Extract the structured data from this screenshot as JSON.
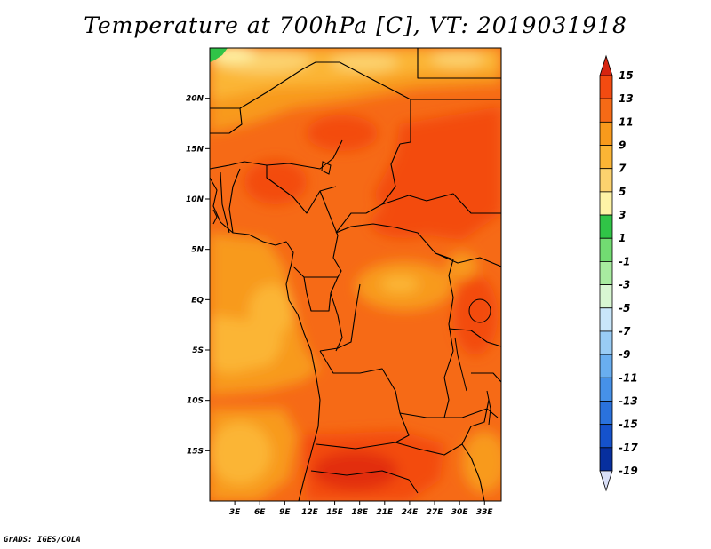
{
  "chart_data": {
    "type": "heatmap",
    "title": "Temperature at 700hPa [C], VT: 2019031918",
    "variable": "Temperature at 700hPa",
    "units": "C",
    "valid_time": "2019031918",
    "x_axis": {
      "range": [
        0,
        35
      ],
      "ticks": [
        {
          "value": 3,
          "label": "3E"
        },
        {
          "value": 6,
          "label": "6E"
        },
        {
          "value": 9,
          "label": "9E"
        },
        {
          "value": 12,
          "label": "12E"
        },
        {
          "value": 15,
          "label": "15E"
        },
        {
          "value": 18,
          "label": "18E"
        },
        {
          "value": 21,
          "label": "21E"
        },
        {
          "value": 24,
          "label": "24E"
        },
        {
          "value": 27,
          "label": "27E"
        },
        {
          "value": 30,
          "label": "30E"
        },
        {
          "value": 33,
          "label": "33E"
        }
      ]
    },
    "y_axis": {
      "range": [
        -20,
        25
      ],
      "ticks": [
        {
          "value": 20,
          "label": "20N"
        },
        {
          "value": 15,
          "label": "15N"
        },
        {
          "value": 10,
          "label": "10N"
        },
        {
          "value": 5,
          "label": "5N"
        },
        {
          "value": 0,
          "label": "EQ"
        },
        {
          "value": -5,
          "label": "5S"
        },
        {
          "value": -10,
          "label": "10S"
        },
        {
          "value": -15,
          "label": "15S"
        }
      ]
    },
    "colorbar": {
      "levels": [
        15,
        13,
        11,
        9,
        7,
        5,
        3,
        1,
        -1,
        -3,
        -5,
        -7,
        -9,
        -11,
        -13,
        -15,
        -17,
        -19
      ],
      "labels": [
        "15",
        "13",
        "11",
        "9",
        "7",
        "5",
        "3",
        "1",
        "-1",
        "-3",
        "-5",
        "-7",
        "-9",
        "-11",
        "-13",
        "-15",
        "-17",
        "-19"
      ],
      "colors": [
        "#e22d10",
        "#f34b11",
        "#f66a16",
        "#f89a1c",
        "#fbb535",
        "#fcd26e",
        "#fef3a6",
        "#30c447",
        "#72db72",
        "#a8eca0",
        "#d8f7d2",
        "#c9e6fa",
        "#99ccf5",
        "#69aef0",
        "#4691e8",
        "#2a72dd",
        "#1552cc",
        "#072f9e",
        "#080d6e"
      ],
      "over_color": "#d62410",
      "under_color": "#d9dff7"
    },
    "field_summary": {
      "dominant_band": "11 to 13",
      "warmest_region": "southern Angola / northern Namibia (~13-15)",
      "coolest_region": "far northwest Sahara near 25N 0E (~1-3)"
    },
    "footer": "GrADS: IGES/COLA"
  }
}
